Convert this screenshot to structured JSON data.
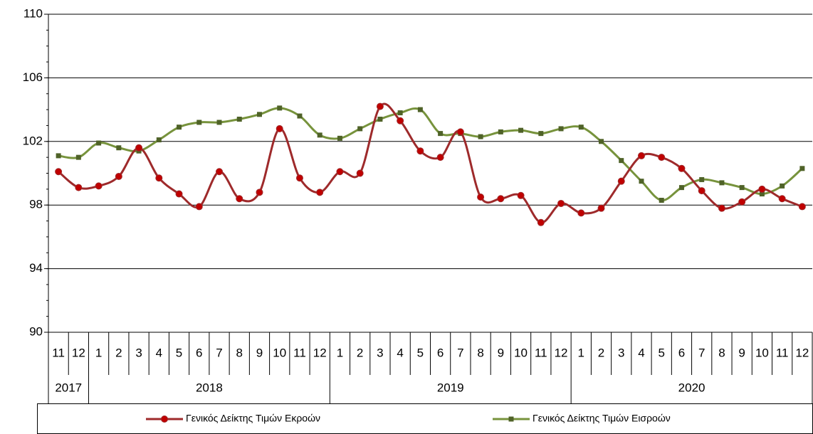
{
  "chart_data": {
    "type": "line",
    "categories": [
      "11",
      "12",
      "1",
      "2",
      "3",
      "4",
      "5",
      "6",
      "7",
      "8",
      "9",
      "10",
      "11",
      "12",
      "1",
      "2",
      "3",
      "4",
      "5",
      "6",
      "7",
      "8",
      "9",
      "10",
      "11",
      "12",
      "1",
      "2",
      "3",
      "4",
      "5",
      "6",
      "7",
      "8",
      "9",
      "10",
      "11",
      "12"
    ],
    "years": [
      "2017",
      "2018",
      "2019",
      "2020"
    ],
    "ylim": [
      90,
      110
    ],
    "yticks": [
      90,
      94,
      98,
      102,
      106,
      110
    ],
    "grid": true,
    "legend": "bottom",
    "series": [
      {
        "name": "Γενικός Δείκτης Τιμών Εκροών",
        "color": "#9e2a2b",
        "marker": "circle",
        "marker_color": "#c00000",
        "values": [
          100.1,
          99.1,
          99.2,
          99.8,
          101.6,
          99.7,
          98.7,
          97.9,
          100.1,
          98.4,
          98.8,
          102.8,
          99.7,
          98.8,
          100.1,
          100.0,
          104.2,
          103.3,
          101.4,
          101.0,
          102.6,
          98.5,
          98.4,
          98.6,
          96.9,
          98.1,
          97.5,
          97.8,
          99.5,
          101.1,
          101.0,
          100.3,
          98.9,
          97.8,
          98.2,
          99.0,
          98.4,
          97.9
        ]
      },
      {
        "name": "Γενικός Δείκτης Τιμών Εισροών",
        "color": "#77933c",
        "marker": "square",
        "marker_color": "#4f6228",
        "values": [
          101.1,
          101.0,
          101.9,
          101.6,
          101.4,
          102.1,
          102.9,
          103.2,
          103.2,
          103.4,
          103.7,
          104.1,
          103.6,
          102.4,
          102.2,
          102.8,
          103.4,
          103.8,
          104.0,
          102.5,
          102.5,
          102.3,
          102.6,
          102.7,
          102.5,
          102.8,
          102.9,
          102.0,
          100.8,
          99.5,
          98.3,
          99.1,
          99.6,
          99.4,
          99.1,
          98.7,
          99.2,
          100.3
        ]
      }
    ]
  }
}
